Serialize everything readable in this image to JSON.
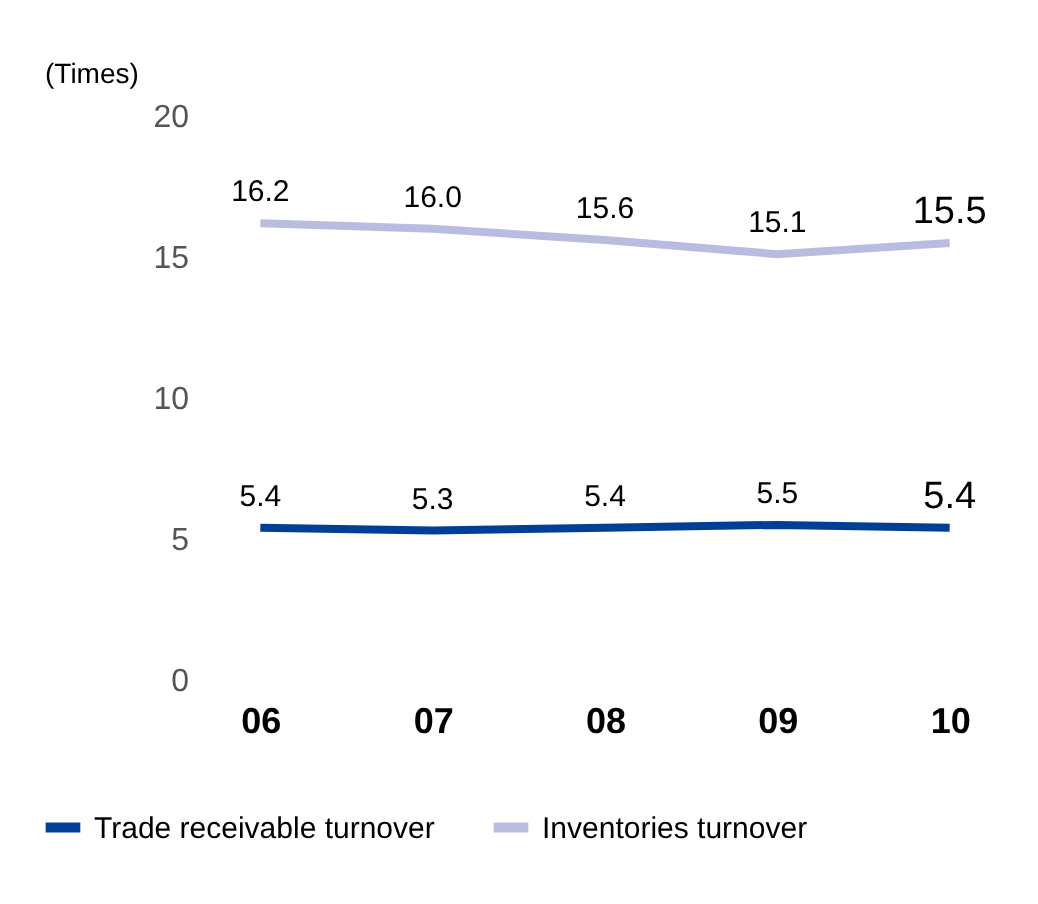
{
  "chart_data": {
    "type": "line",
    "ylabel": "(Times)",
    "categories": [
      "06",
      "07",
      "08",
      "09",
      "10"
    ],
    "series": [
      {
        "name": "Trade receivable turnover",
        "color": "#003f98",
        "values": [
          5.4,
          5.3,
          5.4,
          5.5,
          5.4
        ],
        "value_labels": [
          "5.4",
          "5.3",
          "5.4",
          "5.5",
          "5.4"
        ]
      },
      {
        "name": "Inventories turnover",
        "color": "#b8bde0",
        "values": [
          16.2,
          16.0,
          15.6,
          15.1,
          15.5
        ],
        "value_labels": [
          "16.2",
          "16.0",
          "15.6",
          "15.1",
          "15.5"
        ]
      }
    ],
    "ylim": [
      0,
      20
    ],
    "yticks": [
      0,
      5,
      10,
      15,
      20
    ],
    "grid": false,
    "legend": "bottom left"
  }
}
